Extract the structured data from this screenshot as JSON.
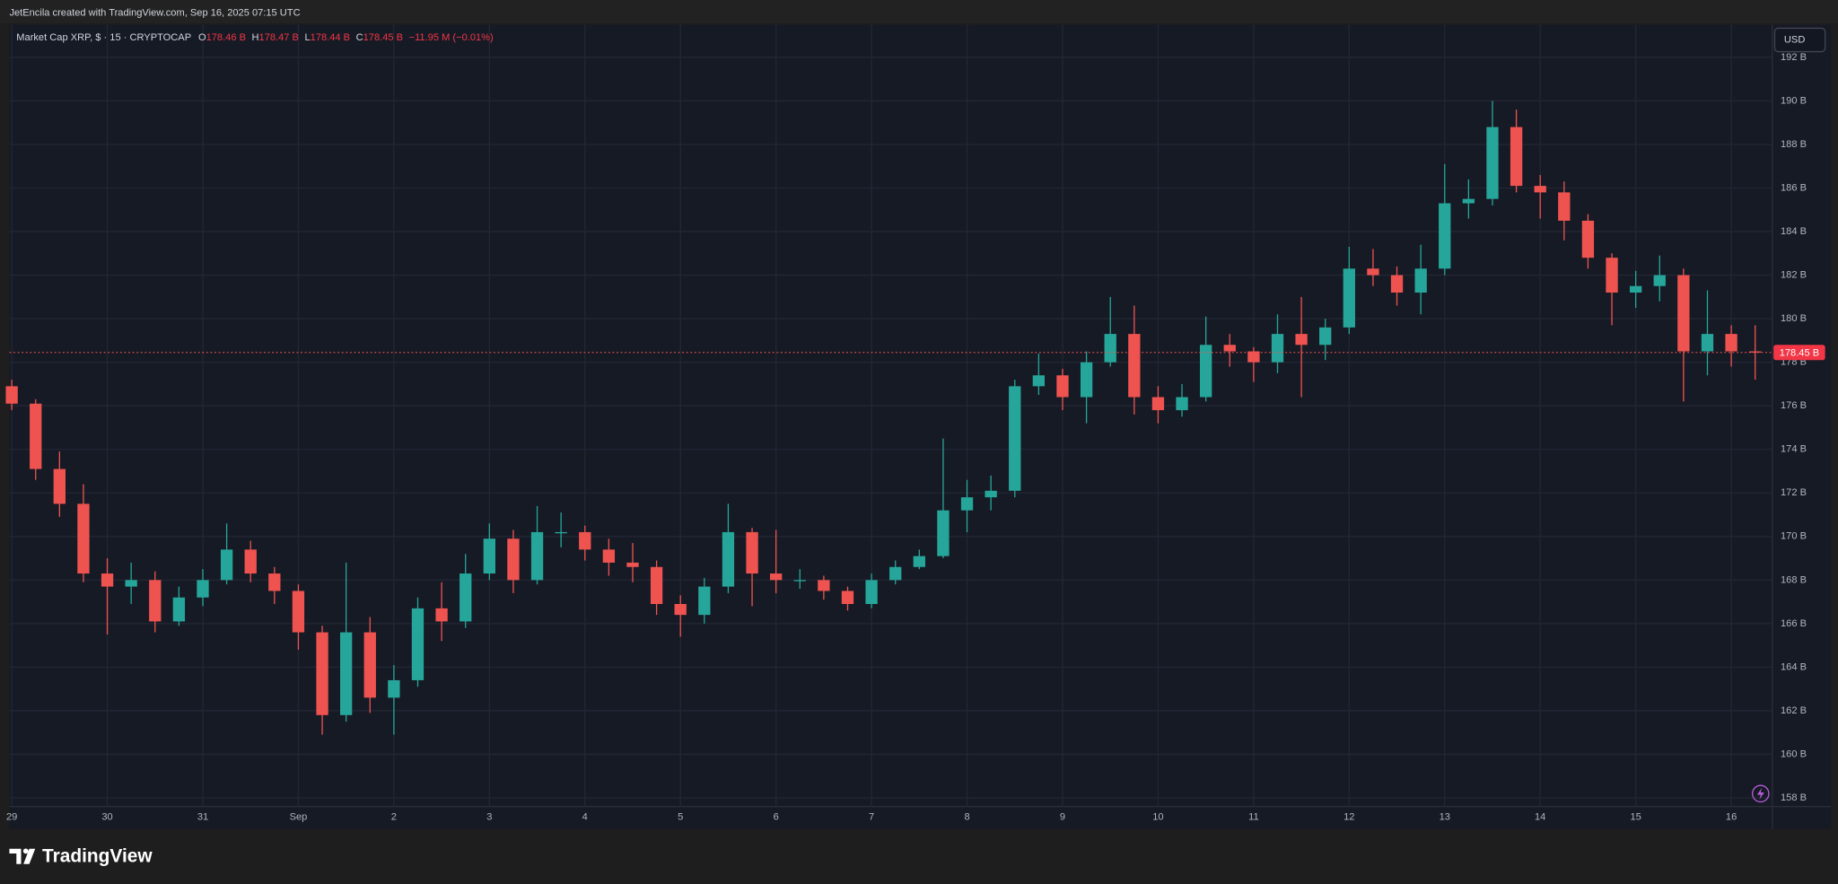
{
  "chart_data": {
    "type": "candlestick",
    "header": "JetEncila created with TradingView.com, Sep 16, 2025 07:15 UTC",
    "symbol": "Market Cap XRP, $ · 15 · CRYPTOCAP",
    "ohlc": [
      {
        "label": "O",
        "value": "178.46 B"
      },
      {
        "label": "H",
        "value": "178.47 B"
      },
      {
        "label": "L",
        "value": "178.44 B"
      },
      {
        "label": "C",
        "value": "178.45 B"
      }
    ],
    "change": "−11.95 M (−0.01%)",
    "currency": "USD",
    "brand": "TradingView",
    "last_price": {
      "value": 178.45,
      "label": "178.45 B"
    },
    "up_color": "#26a69a",
    "down_color": "#ef5350",
    "grid": true,
    "x": [
      0,
      0.25,
      0.5,
      0.75,
      1,
      1.25,
      1.5,
      1.75,
      2,
      2.25,
      2.5,
      2.75,
      3,
      3.25,
      3.5,
      3.75,
      4,
      4.25,
      4.5,
      4.75,
      5,
      5.25,
      5.5,
      5.75,
      6,
      6.25,
      6.5,
      6.75,
      7,
      7.25,
      7.5,
      7.75,
      8,
      8.25,
      8.5,
      8.75,
      9,
      9.25,
      9.5,
      9.75,
      10,
      10.25,
      10.5,
      10.75,
      11,
      11.25,
      11.5,
      11.75,
      12,
      12.25,
      12.5,
      12.75,
      13,
      13.25,
      13.5,
      13.75,
      14,
      14.25,
      14.5,
      14.75,
      15,
      15.25,
      15.5,
      15.75,
      16,
      16.25,
      16.5,
      16.75,
      17,
      17.25,
      17.5,
      17.75,
      18,
      18.25
    ],
    "open": [
      176.9,
      176.1,
      173.1,
      171.5,
      168.3,
      167.7,
      168.0,
      166.1,
      167.2,
      168.0,
      169.4,
      168.3,
      167.5,
      165.6,
      161.8,
      165.6,
      162.6,
      163.4,
      166.7,
      166.1,
      168.3,
      169.9,
      168.0,
      170.2,
      170.2,
      169.4,
      168.8,
      168.6,
      166.9,
      166.4,
      167.7,
      170.2,
      168.3,
      168.0,
      168.0,
      167.5,
      166.9,
      168.0,
      168.6,
      169.1,
      171.2,
      171.8,
      172.1,
      176.9,
      177.4,
      176.4,
      178.0,
      179.3,
      176.4,
      175.8,
      176.4,
      178.8,
      178.5,
      178.0,
      179.3,
      178.8,
      179.6,
      182.3,
      182.0,
      181.2,
      182.3,
      185.3,
      185.5,
      188.8,
      186.1,
      185.8,
      184.5,
      182.8,
      181.2,
      181.5,
      182.0,
      178.5,
      179.3,
      178.5
    ],
    "high": [
      177.2,
      176.3,
      173.9,
      172.4,
      169.0,
      168.8,
      168.4,
      167.7,
      168.5,
      170.6,
      169.8,
      168.6,
      167.8,
      165.9,
      168.8,
      166.3,
      164.1,
      167.2,
      167.9,
      169.2,
      170.6,
      170.3,
      171.4,
      171.1,
      170.5,
      169.9,
      169.7,
      168.9,
      167.3,
      168.1,
      171.5,
      170.4,
      170.3,
      168.5,
      168.2,
      167.7,
      168.3,
      168.9,
      169.4,
      174.5,
      172.6,
      172.8,
      177.2,
      178.4,
      177.7,
      178.5,
      181.0,
      180.6,
      176.9,
      177.0,
      180.1,
      179.3,
      178.7,
      180.2,
      181.0,
      180.0,
      183.3,
      183.2,
      182.4,
      183.4,
      187.1,
      186.4,
      190.0,
      189.6,
      186.6,
      186.3,
      184.8,
      183.0,
      182.2,
      182.9,
      182.3,
      181.3,
      179.7,
      179.7
    ],
    "low": [
      175.8,
      172.6,
      170.9,
      167.9,
      165.5,
      166.9,
      165.6,
      165.9,
      166.8,
      167.8,
      167.9,
      166.9,
      164.8,
      160.9,
      161.5,
      161.9,
      160.9,
      163.1,
      165.2,
      165.8,
      168.0,
      167.4,
      167.8,
      169.5,
      168.9,
      168.2,
      167.9,
      166.4,
      165.4,
      166.0,
      167.4,
      166.8,
      167.4,
      167.6,
      167.1,
      166.6,
      166.7,
      167.8,
      168.5,
      169.0,
      170.2,
      171.2,
      171.8,
      176.5,
      175.8,
      175.2,
      177.8,
      175.6,
      175.2,
      175.5,
      176.2,
      177.8,
      177.1,
      177.5,
      176.4,
      178.1,
      179.3,
      181.5,
      180.6,
      180.2,
      182.0,
      184.6,
      185.2,
      185.8,
      184.6,
      183.6,
      182.3,
      179.7,
      180.5,
      180.8,
      176.2,
      177.4,
      177.8,
      177.2
    ],
    "close": [
      176.1,
      173.1,
      171.5,
      168.3,
      167.7,
      168.0,
      166.1,
      167.2,
      168.0,
      169.4,
      168.3,
      167.5,
      165.6,
      161.8,
      165.6,
      162.6,
      163.4,
      166.7,
      166.1,
      168.3,
      169.9,
      168.0,
      170.2,
      170.2,
      169.4,
      168.8,
      168.6,
      166.9,
      166.4,
      167.7,
      170.2,
      168.3,
      168.0,
      168.0,
      167.5,
      166.9,
      168.0,
      168.6,
      169.1,
      171.2,
      171.8,
      172.1,
      176.9,
      177.4,
      176.4,
      178.0,
      179.3,
      176.4,
      175.8,
      176.4,
      178.8,
      178.5,
      178.0,
      179.3,
      178.8,
      179.6,
      182.3,
      182.0,
      181.2,
      182.3,
      185.3,
      185.5,
      188.8,
      186.1,
      185.8,
      184.5,
      182.8,
      181.2,
      181.5,
      182.0,
      178.5,
      179.3,
      178.5,
      178.45
    ],
    "xlim": [
      -0.025,
      18.43
    ],
    "xticks": [
      {
        "value": 0,
        "label": "29"
      },
      {
        "value": 1,
        "label": "30"
      },
      {
        "value": 2,
        "label": "31"
      },
      {
        "value": 3,
        "label": "Sep"
      },
      {
        "value": 4,
        "label": "2"
      },
      {
        "value": 5,
        "label": "3"
      },
      {
        "value": 6,
        "label": "4"
      },
      {
        "value": 7,
        "label": "5"
      },
      {
        "value": 8,
        "label": "6"
      },
      {
        "value": 9,
        "label": "7"
      },
      {
        "value": 10,
        "label": "8"
      },
      {
        "value": 11,
        "label": "9"
      },
      {
        "value": 12,
        "label": "10"
      },
      {
        "value": 13,
        "label": "11"
      },
      {
        "value": 14,
        "label": "12"
      },
      {
        "value": 15,
        "label": "13"
      },
      {
        "value": 16,
        "label": "14"
      },
      {
        "value": 17,
        "label": "15"
      },
      {
        "value": 18,
        "label": "16"
      }
    ],
    "ylim": [
      157.6,
      193.5
    ],
    "yticks": [
      {
        "value": 158,
        "label": "158 B"
      },
      {
        "value": 160,
        "label": "160 B"
      },
      {
        "value": 162,
        "label": "162 B"
      },
      {
        "value": 164,
        "label": "164 B"
      },
      {
        "value": 166,
        "label": "166 B"
      },
      {
        "value": 168,
        "label": "168 B"
      },
      {
        "value": 170,
        "label": "170 B"
      },
      {
        "value": 172,
        "label": "172 B"
      },
      {
        "value": 174,
        "label": "174 B"
      },
      {
        "value": 176,
        "label": "176 B"
      },
      {
        "value": 178,
        "label": "178 B"
      },
      {
        "value": 180,
        "label": "180 B"
      },
      {
        "value": 182,
        "label": "182 B"
      },
      {
        "value": 184,
        "label": "184 B"
      },
      {
        "value": 186,
        "label": "186 B"
      },
      {
        "value": 188,
        "label": "188 B"
      },
      {
        "value": 190,
        "label": "190 B"
      },
      {
        "value": 192,
        "label": "192 B"
      }
    ]
  }
}
